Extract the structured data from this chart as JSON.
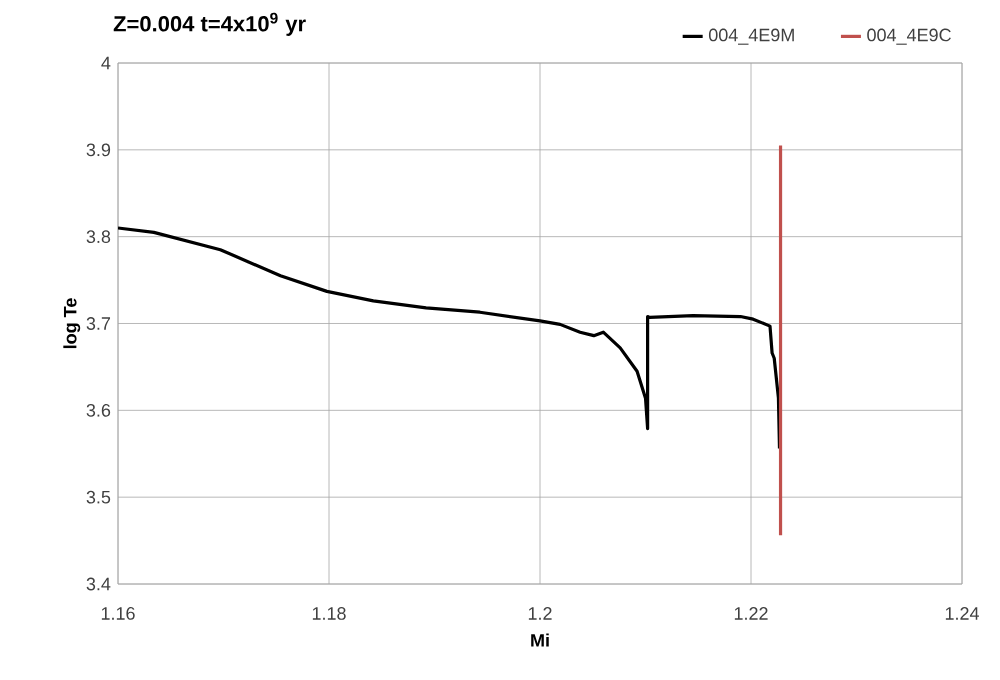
{
  "chart_data": {
    "type": "line",
    "title": "Z=0.004 t=4x10$^{9}$ yr",
    "xlabel": "Mi",
    "ylabel": "log Te",
    "xlim": [
      1.16,
      1.24
    ],
    "xticks": [
      1.16,
      1.18,
      1.2,
      1.22,
      1.24
    ],
    "ylim": [
      3.4,
      4
    ],
    "yticks": [
      3.4,
      3.5,
      3.6,
      3.7,
      3.8,
      3.9,
      4
    ],
    "grid": true,
    "legend": "top right",
    "marker": "none",
    "line_style": "solid",
    "series": [
      {
        "name": "004_4E9M",
        "color": "#000000",
        "x": [
          1.16,
          1.1634,
          1.1697,
          1.1754,
          1.1798,
          1.1842,
          1.1892,
          1.1943,
          1.2,
          1.2019,
          1.2038,
          1.2051,
          1.206,
          1.2076,
          1.2092,
          1.21,
          1.2102,
          1.2102,
          1.2104,
          1.2145,
          1.219,
          1.2202,
          1.2218,
          1.222,
          1.2222,
          1.2226,
          1.2227
        ],
        "values": [
          3.81,
          3.805,
          3.785,
          3.755,
          3.737,
          3.726,
          3.718,
          3.713,
          3.703,
          3.699,
          3.69,
          3.686,
          3.69,
          3.672,
          3.645,
          3.614,
          3.579,
          3.708,
          3.707,
          3.709,
          3.708,
          3.705,
          3.697,
          3.666,
          3.66,
          3.614,
          3.556
        ]
      },
      {
        "name": "004_4E9C",
        "color": "#c0504d",
        "x": [
          1.2228,
          1.2228
        ],
        "values": [
          3.905,
          3.456
        ]
      }
    ]
  }
}
